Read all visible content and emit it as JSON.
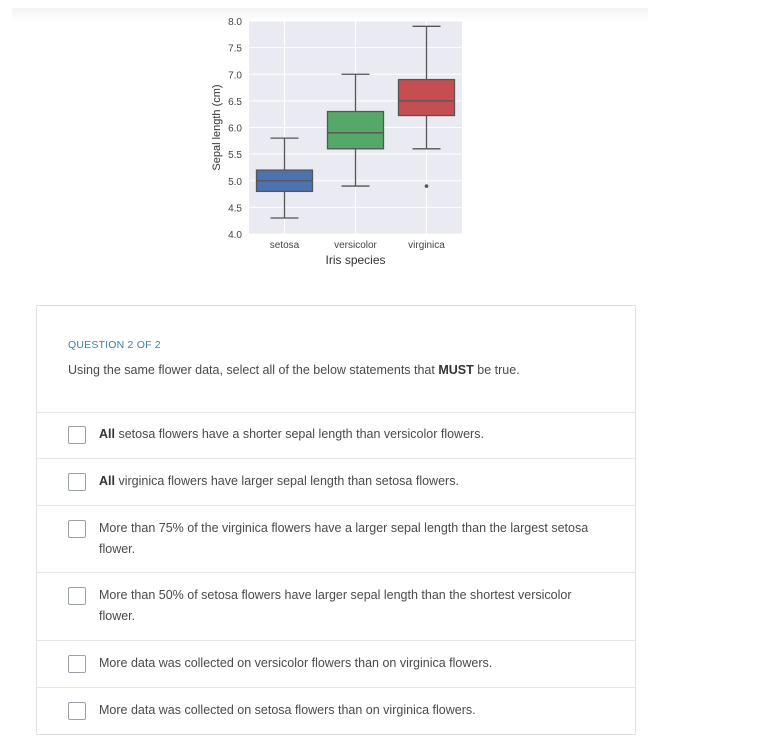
{
  "chart_data": {
    "type": "boxplot",
    "categories": [
      "setosa",
      "versicolor",
      "virginica"
    ],
    "xlabel": "Iris species",
    "ylabel": "Sepal length (cm)",
    "ylim": [
      4.0,
      8.0
    ],
    "yticks": [
      "4.0",
      "4.5",
      "5.0",
      "5.5",
      "6.0",
      "6.5",
      "7.0",
      "7.5",
      "8.0"
    ],
    "grid": true,
    "series": [
      {
        "category": "setosa",
        "min": 4.3,
        "q1": 4.8,
        "median": 5.0,
        "q3": 5.2,
        "max": 5.8,
        "outliers": [],
        "color": "#4c72b0"
      },
      {
        "category": "versicolor",
        "min": 4.9,
        "q1": 5.6,
        "median": 5.9,
        "q3": 6.3,
        "max": 7.0,
        "outliers": [],
        "color": "#55a868"
      },
      {
        "category": "virginica",
        "min": 5.6,
        "q1": 6.225,
        "median": 6.5,
        "q3": 6.9,
        "max": 7.9,
        "outliers": [
          4.9
        ],
        "color": "#c44e52"
      }
    ]
  },
  "question": {
    "counter": "QUESTION 2 OF 2",
    "prompt_before": "Using the same flower data, select all of the below statements that ",
    "prompt_bold": "MUST",
    "prompt_after": " be true.",
    "options": [
      {
        "bold": "All",
        "text": " setosa flowers have a shorter sepal length than versicolor flowers."
      },
      {
        "bold": "All",
        "text": " virginica flowers have larger sepal length than setosa flowers."
      },
      {
        "bold": "",
        "text": "More than 75% of the virginica flowers have a larger sepal length than the largest setosa flower."
      },
      {
        "bold": "",
        "text": "More than 50% of setosa flowers have larger sepal length than the shortest versicolor flower."
      },
      {
        "bold": "",
        "text": "More data was collected on versicolor flowers than on virginica flowers."
      },
      {
        "bold": "",
        "text": "More data was collected on setosa flowers than on virginica flowers."
      }
    ]
  }
}
